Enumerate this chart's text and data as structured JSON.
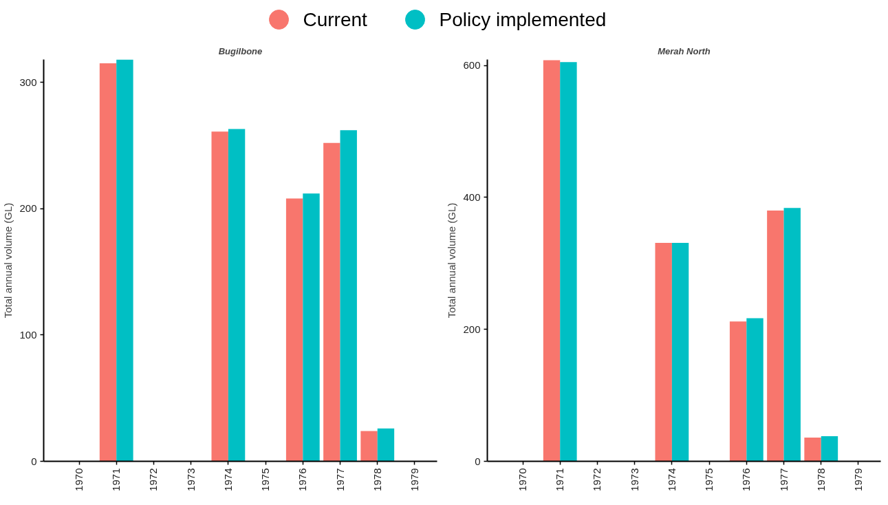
{
  "chart_data": [
    {
      "type": "bar",
      "title": "Bugilbone",
      "ylabel": "Total annual volume (GL)",
      "categories": [
        "1970",
        "1971",
        "1972",
        "1973",
        "1974",
        "1975",
        "1976",
        "1977",
        "1978",
        "1979"
      ],
      "ylim": [
        0,
        318
      ],
      "yticks": [
        0,
        100,
        200,
        300
      ],
      "grid": false,
      "legend": "top",
      "series": [
        {
          "name": "Current",
          "color": "#f8766d",
          "values": [
            null,
            315,
            null,
            null,
            261,
            null,
            208,
            252,
            24,
            null
          ]
        },
        {
          "name": "Policy implemented",
          "color": "#00bfc4",
          "values": [
            null,
            318,
            null,
            null,
            263,
            null,
            212,
            262,
            26,
            null
          ]
        }
      ]
    },
    {
      "type": "bar",
      "title": "Merah North",
      "ylabel": "Total annual volume (GL)",
      "categories": [
        "1970",
        "1971",
        "1972",
        "1973",
        "1974",
        "1975",
        "1976",
        "1977",
        "1978",
        "1979"
      ],
      "ylim": [
        0,
        609
      ],
      "yticks": [
        0,
        200,
        400,
        600
      ],
      "grid": false,
      "legend": "top",
      "series": [
        {
          "name": "Current",
          "color": "#f8766d",
          "values": [
            null,
            608,
            null,
            null,
            331,
            null,
            212,
            380,
            36,
            null
          ]
        },
        {
          "name": "Policy implemented",
          "color": "#00bfc4",
          "values": [
            null,
            605,
            null,
            null,
            331,
            null,
            217,
            384,
            38,
            null
          ]
        }
      ]
    }
  ]
}
